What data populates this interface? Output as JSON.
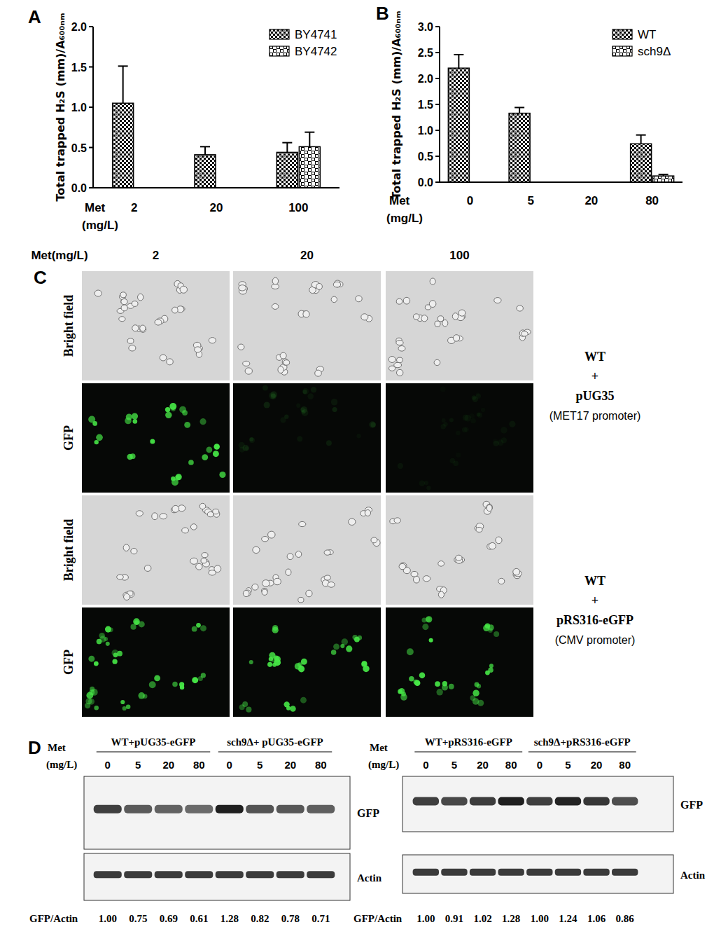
{
  "chart_data": [
    {
      "type": "bar",
      "title": "A",
      "xlabel": "Met (mg/L)",
      "ylabel": "Total trapped H₂S (mm)/A₆₀₀ₙₘ",
      "categories": [
        "2",
        "20",
        "100"
      ],
      "series": [
        {
          "name": "BY4741",
          "color": "#000000",
          "values": [
            1.05,
            0.41,
            0.44
          ],
          "errors": [
            0.46,
            0.1,
            0.12
          ]
        },
        {
          "name": "BY4742",
          "color": "#000000",
          "values": [
            0,
            0,
            0.51
          ],
          "errors": [
            0,
            0,
            0.18
          ]
        }
      ],
      "ylim": [
        0,
        2
      ],
      "yticks": [
        {
          "value": 0,
          "label": "0.0"
        },
        {
          "value": 0.5,
          "label": "0.5"
        },
        {
          "value": 1,
          "label": "1.0"
        },
        {
          "value": 1.5,
          "label": "1.5"
        },
        {
          "value": 2,
          "label": "2.0"
        }
      ],
      "legend": "upper right",
      "grid": false
    },
    {
      "type": "bar",
      "title": "B",
      "xlabel": "Met (mg/L)",
      "ylabel": "Total trapped H₂S (mm)/A₆₀₀ₙₘ",
      "categories": [
        "0",
        "5",
        "20",
        "80"
      ],
      "series": [
        {
          "name": "WT",
          "color": "#000000",
          "values": [
            2.2,
            1.33,
            0,
            0.74
          ],
          "errors": [
            0.26,
            0.11,
            0,
            0.17
          ]
        },
        {
          "name": "sch9Δ",
          "color": "#000000",
          "values": [
            0,
            0,
            0,
            0.12
          ],
          "errors": [
            0,
            0,
            0,
            0.03
          ]
        }
      ],
      "ylim": [
        0,
        3
      ],
      "yticks": [
        {
          "value": 0,
          "label": "0.0"
        },
        {
          "value": 0.5,
          "label": "0.5"
        },
        {
          "value": 1,
          "label": "1.0"
        },
        {
          "value": 1.5,
          "label": "1.5"
        },
        {
          "value": 2,
          "label": "2.0"
        },
        {
          "value": 2.5,
          "label": "2.5"
        },
        {
          "value": 3,
          "label": "3.0"
        }
      ],
      "legend": "upper right",
      "grid": false
    }
  ],
  "panels": {
    "C": {
      "label": "C",
      "header": "Met(mg/L)",
      "columns": [
        "2",
        "20",
        "100"
      ],
      "rows": [
        "Bright field",
        "GFP",
        "Bright field",
        "GFP"
      ],
      "groups": [
        {
          "lines": [
            "WT",
            "+",
            "pUG35",
            "(MET17 promoter)"
          ]
        },
        {
          "lines": [
            "WT",
            "+",
            "pRS316-eGFP",
            "(CMV promoter)"
          ]
        }
      ]
    },
    "D": {
      "label": "D",
      "blots": [
        {
          "met": "Met",
          "unit": "(mg/L)",
          "groups": [
            "WT+pUG35-eGFP",
            "sch9Δ+ pUG35-eGFP"
          ],
          "lanes": [
            "0",
            "5",
            "20",
            "80",
            "0",
            "5",
            "20",
            "80"
          ],
          "bands": [
            "GFP",
            "Actin"
          ],
          "ratio_label": "GFP/Actin",
          "ratios": [
            1.0,
            0.75,
            0.69,
            0.61,
            1.28,
            0.82,
            0.78,
            0.71
          ],
          "ratio_labels": [
            "1.00",
            "0.75",
            "0.69",
            "0.61",
            "1.28",
            "0.82",
            "0.78",
            "0.71"
          ]
        },
        {
          "met": "Met",
          "unit": "(mg/L)",
          "groups": [
            "WT+pRS316-eGFP",
            "sch9Δ+pRS316-eGFP"
          ],
          "lanes": [
            "0",
            "5",
            "20",
            "80",
            "0",
            "5",
            "20",
            "80"
          ],
          "bands": [
            "GFP",
            "Actin"
          ],
          "ratio_label": "GFP/Actin",
          "ratios": [
            1.0,
            0.91,
            1.02,
            1.28,
            1.0,
            1.24,
            1.06,
            0.86
          ],
          "ratio_labels": [
            "1.00",
            "0.91",
            "1.02",
            "1.28",
            "1.00",
            "1.24",
            "1.06",
            "0.86"
          ]
        }
      ]
    }
  }
}
